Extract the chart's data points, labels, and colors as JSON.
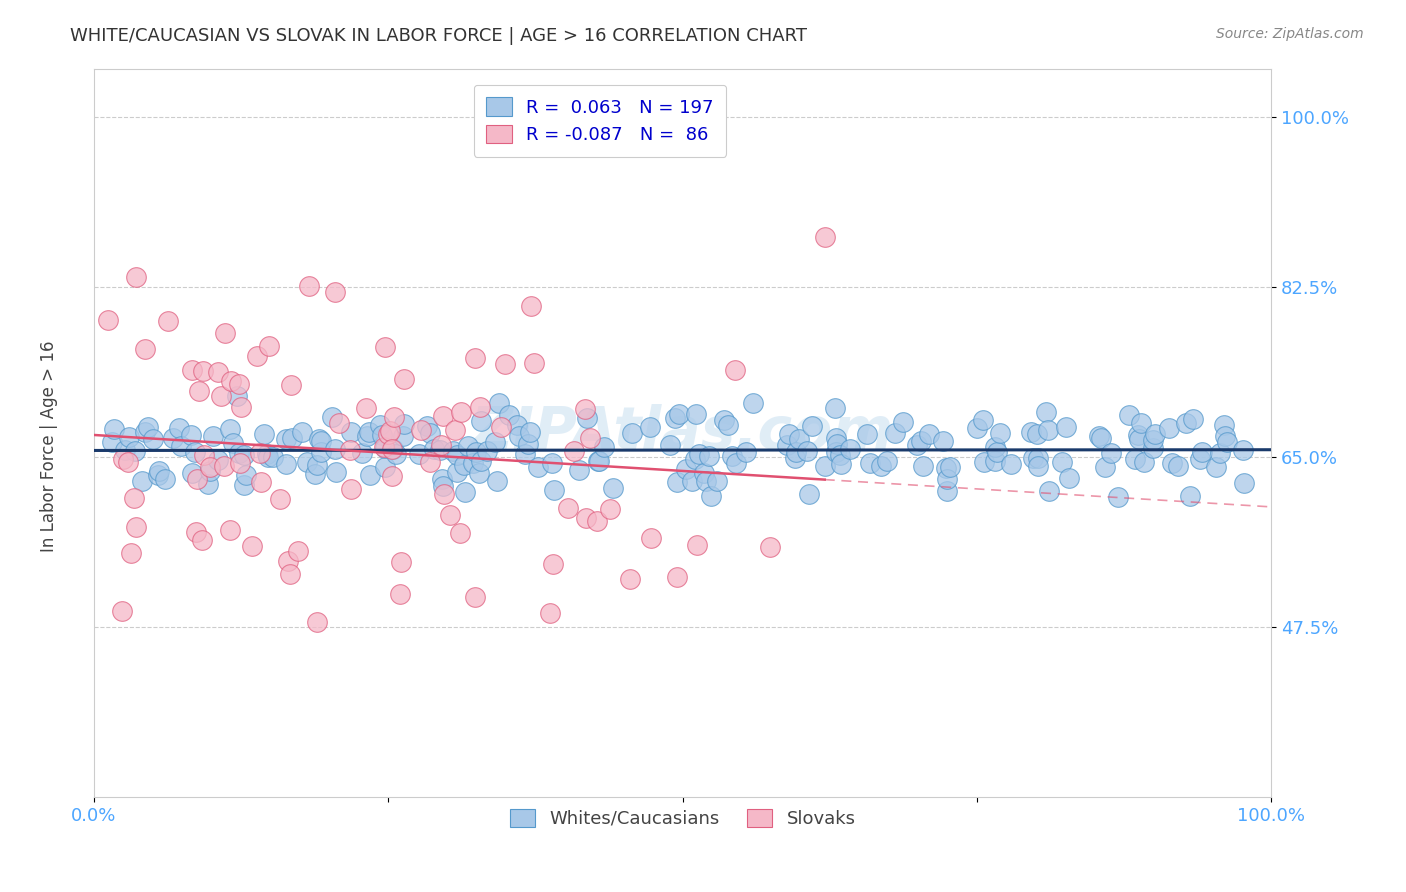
{
  "title": "WHITE/CAUCASIAN VS SLOVAK IN LABOR FORCE | AGE > 16 CORRELATION CHART",
  "source": "Source: ZipAtlas.com",
  "ylabel": "In Labor Force | Age > 16",
  "xlim": [
    0.0,
    1.0
  ],
  "ylim": [
    0.3,
    1.05
  ],
  "yticks": [
    0.475,
    0.65,
    0.825,
    1.0
  ],
  "ytick_labels": [
    "47.5%",
    "65.0%",
    "82.5%",
    "100.0%"
  ],
  "xticks": [
    0.0,
    0.25,
    0.5,
    0.75,
    1.0
  ],
  "xtick_labels": [
    "0.0%",
    "",
    "",
    "",
    "100.0%"
  ],
  "blue_R": 0.063,
  "blue_N": 197,
  "pink_R": -0.087,
  "pink_N": 86,
  "blue_color": "#a8c8e8",
  "blue_edge_color": "#5599cc",
  "pink_color": "#f5b8c8",
  "pink_edge_color": "#e06080",
  "blue_line_color": "#1a3a6b",
  "pink_line_color": "#e05070",
  "title_color": "#333333",
  "axis_color": "#4da6ff",
  "legend_text_color": "#0000cd",
  "background_color": "#ffffff",
  "watermark": "ZIPAtlas.com",
  "seed": 42,
  "blue_line_intercept": 0.652,
  "blue_line_slope": 0.003,
  "pink_line_intercept": 0.68,
  "pink_line_slope": -0.065
}
